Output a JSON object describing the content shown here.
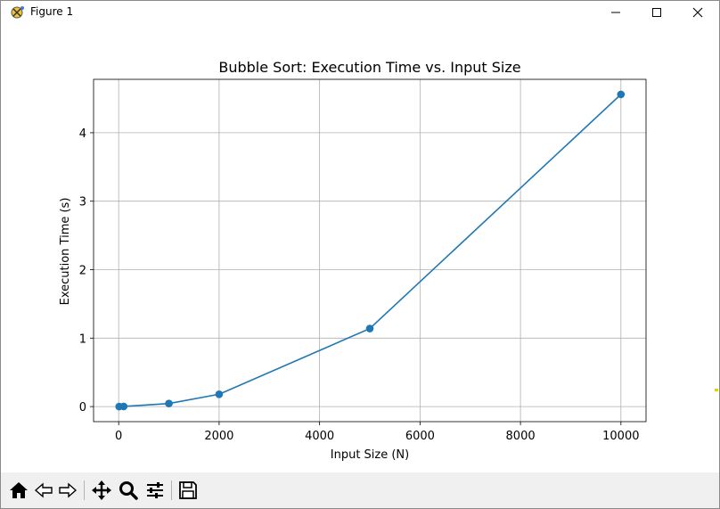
{
  "window": {
    "title": "Figure 1"
  },
  "chart_data": {
    "type": "line",
    "title": "Bubble Sort: Execution Time vs. Input Size",
    "xlabel": "Input Size (N)",
    "ylabel": "Execution Time (s)",
    "x": [
      10,
      100,
      1000,
      2000,
      5000,
      10000
    ],
    "series": [
      {
        "values": [
          0.0001,
          0.002,
          0.045,
          0.18,
          1.14,
          4.56
        ],
        "color": "#1f77b4",
        "marker": "circle"
      }
    ],
    "xlim": [
      -500,
      10500
    ],
    "ylim": [
      -0.22,
      4.78
    ],
    "xticks": [
      0,
      2000,
      4000,
      6000,
      8000,
      10000
    ],
    "xtick_labels": [
      "0",
      "2000",
      "4000",
      "6000",
      "8000",
      "10000"
    ],
    "yticks": [
      0,
      1,
      2,
      3,
      4
    ],
    "ytick_labels": [
      "0",
      "1",
      "2",
      "3",
      "4"
    ],
    "grid": true
  },
  "toolbar": {
    "items": [
      {
        "name": "home-icon"
      },
      {
        "name": "back-arrow-icon"
      },
      {
        "name": "forward-arrow-icon"
      },
      {
        "name": "pan-icon"
      },
      {
        "name": "zoom-icon"
      },
      {
        "name": "configure-subplots-icon"
      },
      {
        "name": "save-icon"
      }
    ]
  }
}
